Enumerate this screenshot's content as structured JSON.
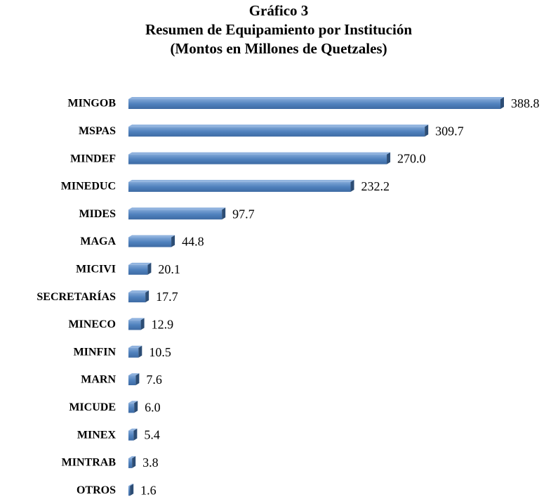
{
  "chart_data": {
    "type": "bar",
    "orientation": "horizontal",
    "title": [
      "Gráfico 3",
      "Resumen de Equipamiento por Institución",
      "(Montos en Millones de Quetzales)"
    ],
    "categories": [
      "MINGOB",
      "MSPAS",
      "MINDEF",
      "MINEDUC",
      "MIDES",
      "MAGA",
      "MICIVI",
      "SECRETARÍAS",
      "MINECO",
      "MINFIN",
      "MARN",
      "MICUDE",
      "MINEX",
      "MINTRAB",
      "OTROS"
    ],
    "values": [
      388.8,
      309.7,
      270.0,
      232.2,
      97.7,
      44.8,
      20.1,
      17.7,
      12.9,
      10.5,
      7.6,
      6.0,
      5.4,
      3.8,
      1.6
    ],
    "value_labels": [
      "388.8",
      "309.7",
      "270.0",
      "232.2",
      "97.7",
      "44.8",
      "20.1",
      "17.7",
      "12.9",
      "10.5",
      "7.6",
      "6.0",
      "5.4",
      "3.8",
      "1.6"
    ],
    "color": "#4f81bd"
  }
}
